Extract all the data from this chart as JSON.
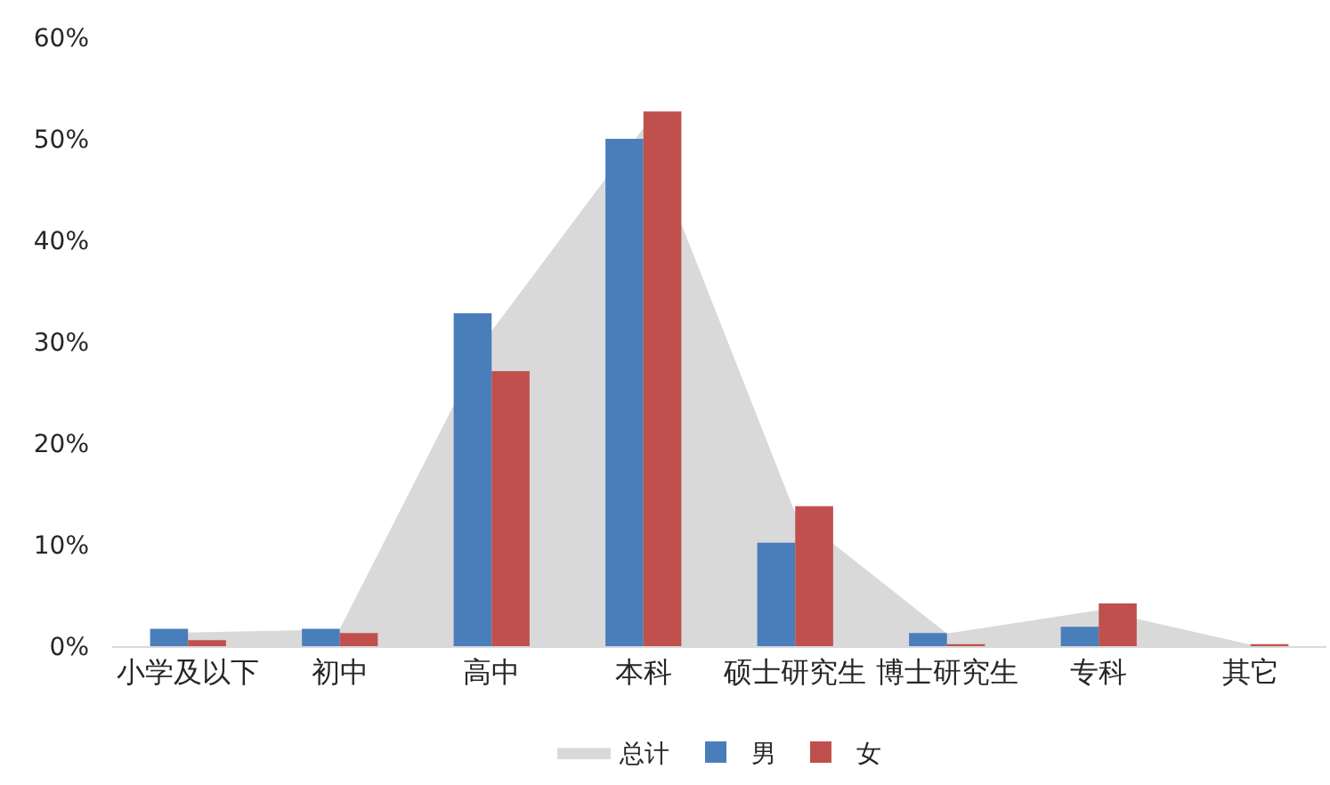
{
  "chart_data": {
    "type": "bar",
    "categories": [
      "小学及以下",
      "初中",
      "高中",
      "本科",
      "硕士研究生",
      "博士研究生",
      "专科",
      "其它"
    ],
    "series": [
      {
        "name": "总计",
        "type": "area",
        "color": "#d9d9d9",
        "values": [
          1.3,
          1.6,
          31,
          51,
          13,
          1.2,
          3.5,
          0.1
        ]
      },
      {
        "name": "男",
        "color": "#4a7ebb",
        "values": [
          1.7,
          1.7,
          32.8,
          50.0,
          10.2,
          1.3,
          1.9,
          0
        ]
      },
      {
        "name": "女",
        "color": "#c0504d",
        "values": [
          0.6,
          1.3,
          27.1,
          52.7,
          13.8,
          0.2,
          4.2,
          0.2
        ]
      }
    ],
    "ylim": [
      0,
      60
    ],
    "yticks": [
      {
        "value": 0,
        "label": "0%"
      },
      {
        "value": 10,
        "label": "10%"
      },
      {
        "value": 20,
        "label": "20%"
      },
      {
        "value": 30,
        "label": "30%"
      },
      {
        "value": 40,
        "label": "40%"
      },
      {
        "value": 50,
        "label": "50%"
      },
      {
        "value": 60,
        "label": "60%"
      }
    ],
    "legend": "bottom"
  }
}
